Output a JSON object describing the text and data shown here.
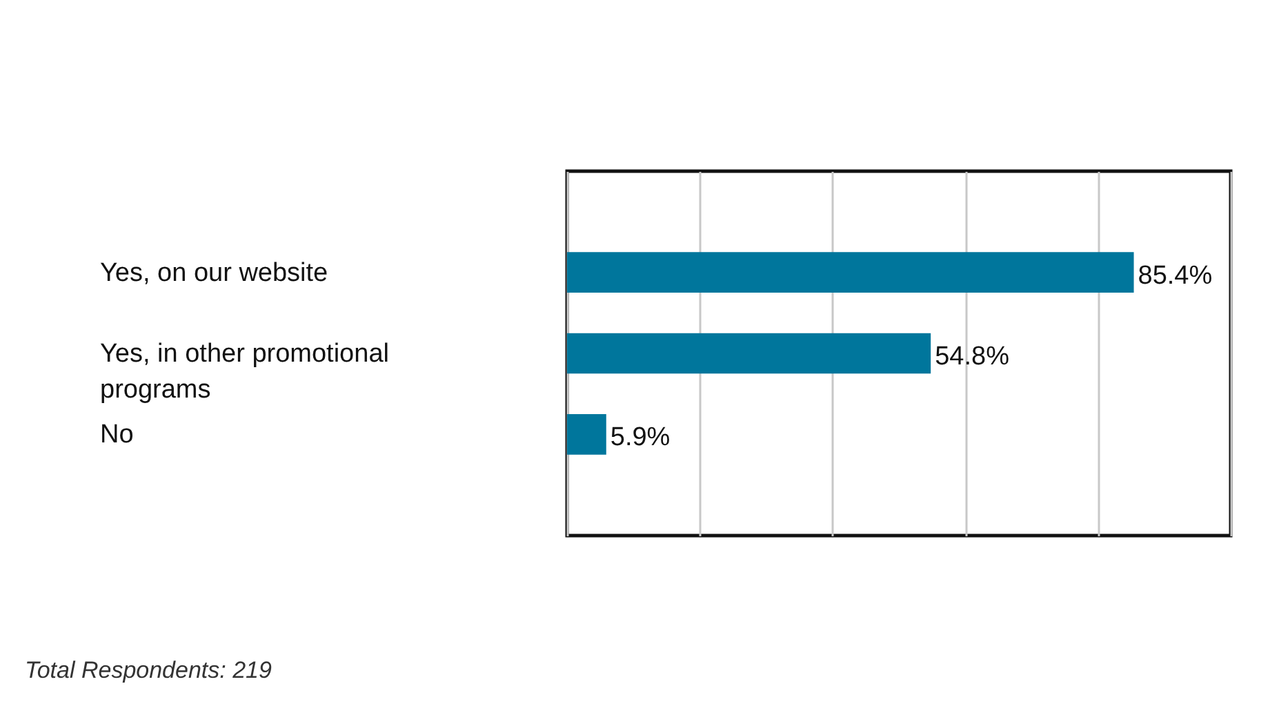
{
  "chart_data": {
    "type": "bar",
    "orientation": "horizontal",
    "categories": [
      "Yes, on our website",
      "Yes, in other promotional programs",
      "No"
    ],
    "values": [
      85.4,
      54.8,
      5.9
    ],
    "value_labels": [
      "85.4%",
      "54.8%",
      "5.9%"
    ],
    "color": "#00769c",
    "xlim": [
      0,
      100
    ],
    "xticks": [
      {
        "value": 0,
        "label": null
      },
      {
        "value": 20,
        "label": null
      },
      {
        "value": 40,
        "label": null
      },
      {
        "value": 60,
        "label": null
      },
      {
        "value": 80,
        "label": null
      },
      {
        "value": 100,
        "label": null
      }
    ],
    "grid": "x",
    "tick_labels": "y",
    "annotations": [
      "Total Respondents: 219"
    ]
  }
}
